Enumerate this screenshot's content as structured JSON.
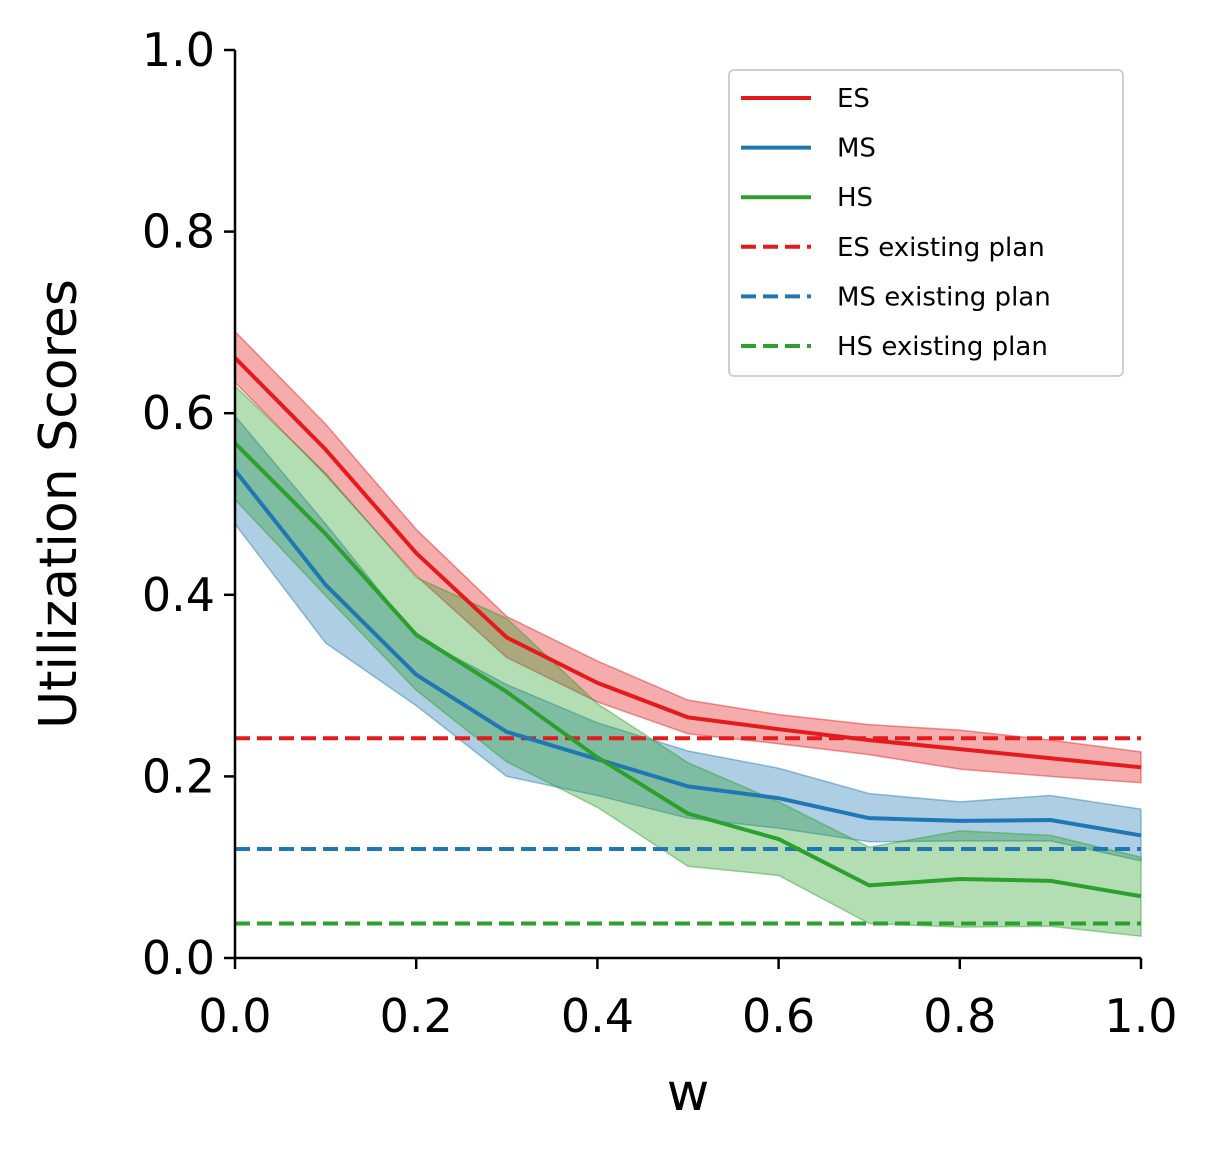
{
  "chart_data": {
    "type": "line",
    "title": "",
    "xlabel": "w",
    "ylabel": "Utilization Scores",
    "xlim": [
      0.0,
      1.0
    ],
    "ylim": [
      0.0,
      1.0
    ],
    "xticks": [
      "0.0",
      "0.2",
      "0.4",
      "0.6",
      "0.8",
      "1.0"
    ],
    "yticks": [
      "0.0",
      "0.2",
      "0.4",
      "0.6",
      "0.8",
      "1.0"
    ],
    "grid": false,
    "legend_position": "top-right",
    "x": [
      0.0,
      0.1,
      0.2,
      0.3,
      0.4,
      0.5,
      0.6,
      0.7,
      0.8,
      0.9,
      1.0
    ],
    "series": [
      {
        "name": "ES",
        "color": "#e41a1c",
        "style": "solid",
        "values": [
          0.661,
          0.56,
          0.446,
          0.353,
          0.303,
          0.265,
          0.252,
          0.24,
          0.23,
          0.22,
          0.21
        ],
        "lower": [
          0.634,
          0.532,
          0.421,
          0.331,
          0.282,
          0.247,
          0.236,
          0.224,
          0.208,
          0.2,
          0.193
        ],
        "upper": [
          0.69,
          0.588,
          0.472,
          0.376,
          0.327,
          0.284,
          0.268,
          0.257,
          0.251,
          0.24,
          0.227
        ]
      },
      {
        "name": "MS",
        "color": "#1f77b4",
        "style": "solid",
        "values": [
          0.537,
          0.411,
          0.312,
          0.249,
          0.219,
          0.189,
          0.176,
          0.154,
          0.151,
          0.152,
          0.135
        ],
        "lower": [
          0.478,
          0.347,
          0.278,
          0.2,
          0.179,
          0.154,
          0.143,
          0.128,
          0.129,
          0.129,
          0.107
        ],
        "upper": [
          0.597,
          0.478,
          0.354,
          0.301,
          0.259,
          0.228,
          0.209,
          0.181,
          0.172,
          0.179,
          0.164
        ]
      },
      {
        "name": "HS",
        "color": "#2ca02c",
        "style": "solid",
        "values": [
          0.567,
          0.467,
          0.356,
          0.293,
          0.221,
          0.159,
          0.131,
          0.08,
          0.087,
          0.085,
          0.068
        ],
        "lower": [
          0.505,
          0.399,
          0.295,
          0.216,
          0.166,
          0.101,
          0.091,
          0.038,
          0.034,
          0.035,
          0.024
        ],
        "upper": [
          0.63,
          0.534,
          0.419,
          0.374,
          0.28,
          0.215,
          0.172,
          0.122,
          0.14,
          0.135,
          0.111
        ]
      },
      {
        "name": "ES existing plan",
        "color": "#e41a1c",
        "style": "dashed",
        "constant": 0.242
      },
      {
        "name": "MS existing plan",
        "color": "#1f77b4",
        "style": "dashed",
        "constant": 0.12
      },
      {
        "name": "HS existing plan",
        "color": "#2ca02c",
        "style": "dashed",
        "constant": 0.038
      }
    ]
  }
}
